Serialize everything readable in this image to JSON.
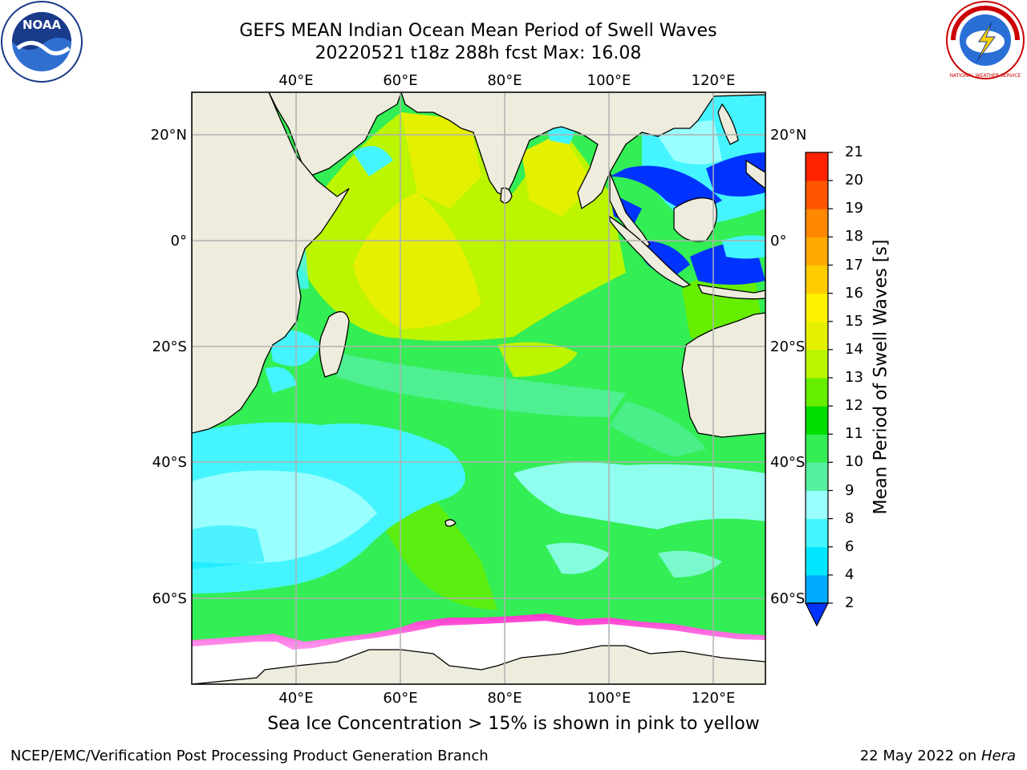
{
  "header": {
    "title_line1": "GEFS MEAN Indian Ocean Mean Period of Swell Waves",
    "title_line2": "20220521 t18z 288h fcst   Max: 16.08"
  },
  "map": {
    "lon_labels": [
      "40°E",
      "60°E",
      "80°E",
      "100°E",
      "120°E"
    ],
    "lat_labels": [
      "20°N",
      "0°",
      "20°S",
      "40°S",
      "60°S"
    ],
    "land_color": "#eeecdc",
    "grid_color": "#b0b0b0"
  },
  "colorbar": {
    "title": "Mean Period of Swell Waves [s]",
    "tick_labels": [
      "2",
      "4",
      "6",
      "8",
      "9",
      "10",
      "11",
      "12",
      "13",
      "14",
      "15",
      "16",
      "17",
      "18",
      "19",
      "20",
      "21"
    ],
    "colors": [
      "#0033ff",
      "#00aaff",
      "#00e6ff",
      "#44f5ff",
      "#99ffff",
      "#55f0a0",
      "#33ee55",
      "#00dd00",
      "#66ee00",
      "#bbf500",
      "#e5f000",
      "#fff200",
      "#ffcc00",
      "#ffaa00",
      "#ff8800",
      "#ff5500",
      "#ff2200",
      "#ff0000"
    ]
  },
  "annotation": "Sea Ice Concentration > 15% is shown in pink to yellow",
  "footer": {
    "left": "NCEP/EMC/Verification Post Processing Product Generation Branch",
    "right_date": "22 May 2022 on ",
    "right_machine": "Hera"
  },
  "logos": {
    "noaa_text": "NOAA",
    "nws_text": "NATIONAL WEATHER SERVICE"
  }
}
